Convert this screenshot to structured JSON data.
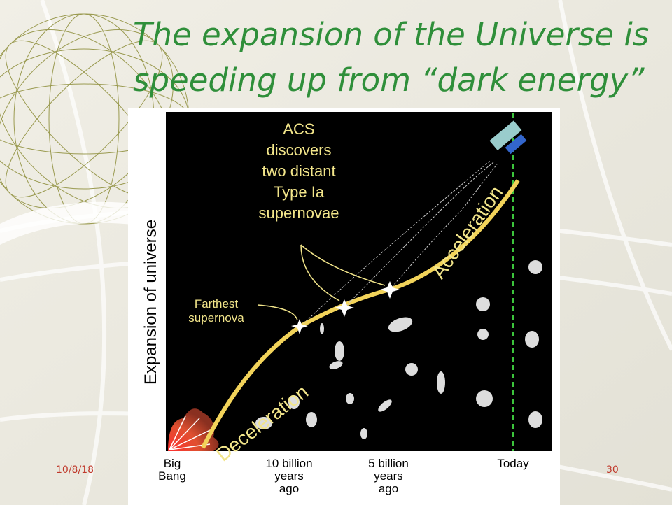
{
  "title": {
    "lines": [
      "The expansion of the Universe is",
      "speeding up from “dark energy”"
    ]
  },
  "figure": {
    "y_label": "Expansion of universe",
    "annotations": {
      "acs": [
        "ACS",
        "discovers",
        "two distant",
        "Type Ia",
        "supernovae"
      ],
      "farthest": [
        "Farthest",
        "supernova"
      ],
      "deceleration": "Deceleration",
      "acceleration": "Acceleration"
    },
    "x_labels": [
      [
        "Big",
        "Bang"
      ],
      [
        "10 billion",
        "years",
        "ago"
      ],
      [
        "5 billion",
        "years",
        "ago"
      ],
      [
        "Today"
      ]
    ]
  },
  "footer": {
    "date": "10/8/18",
    "page": "30"
  }
}
